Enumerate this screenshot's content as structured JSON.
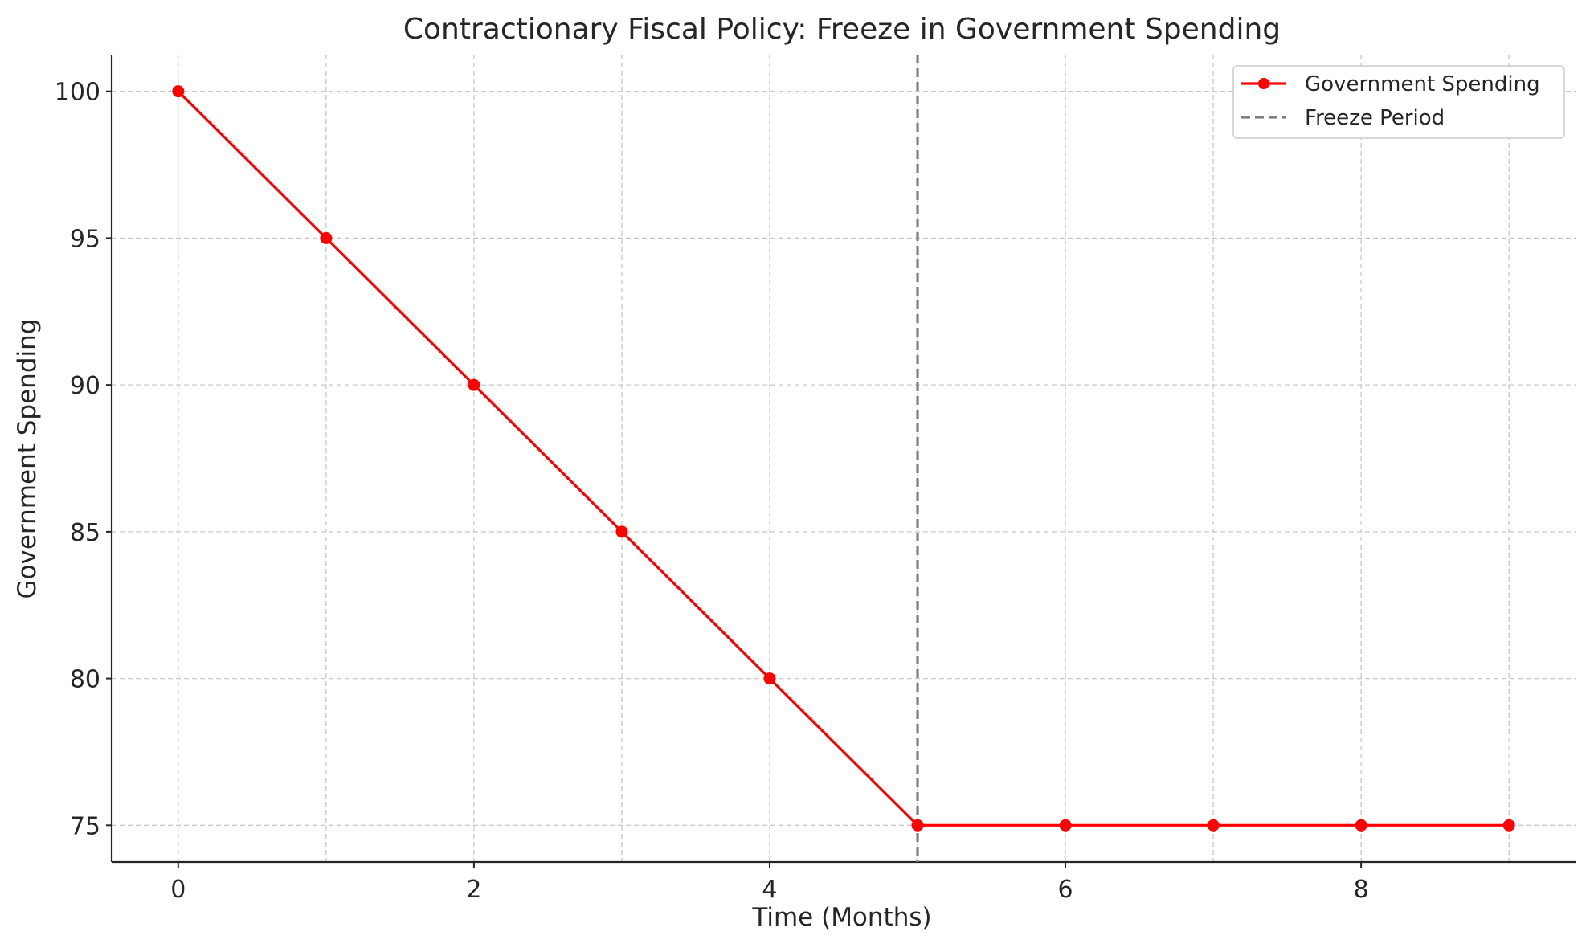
{
  "chart_data": {
    "type": "line",
    "title": "Contractionary Fiscal Policy: Freeze in Government Spending",
    "xlabel": "Time (Months)",
    "ylabel": "Government Spending",
    "xlim": [
      -0.45,
      9.45
    ],
    "ylim": [
      73.75,
      101.25
    ],
    "x_ticks": [
      0,
      2,
      4,
      6,
      8
    ],
    "y_ticks": [
      75,
      80,
      85,
      90,
      95,
      100
    ],
    "grid": true,
    "legend_position": "top-right",
    "series": [
      {
        "name": "Government Spending",
        "color": "#ff0000",
        "marker": "circle",
        "x": [
          0,
          1,
          2,
          3,
          4,
          5,
          6,
          7,
          8,
          9
        ],
        "y": [
          100,
          95,
          90,
          85,
          80,
          75,
          75,
          75,
          75,
          75
        ]
      }
    ],
    "reference_lines": [
      {
        "name": "Freeze Period",
        "orientation": "vertical",
        "x": 5,
        "color": "#808080",
        "style": "dashed"
      }
    ]
  }
}
